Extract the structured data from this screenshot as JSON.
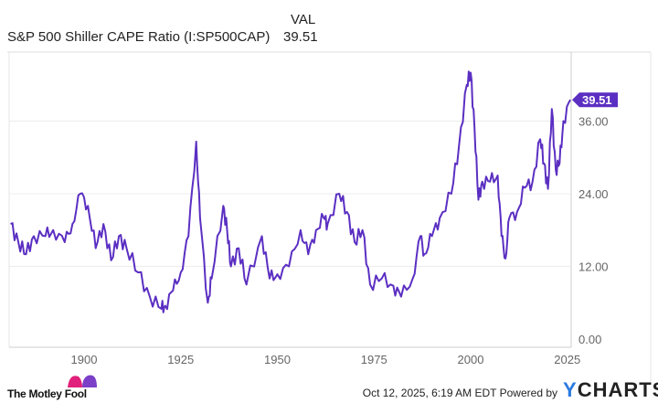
{
  "legend": {
    "header": "VAL",
    "series_name": "S&P 500 Shiller CAPE Ratio (I:SP500CAP)",
    "value": "39.51"
  },
  "chart_data": {
    "type": "line",
    "title": "",
    "xlabel": "",
    "ylabel": "",
    "x_ticks": [
      "1900",
      "1925",
      "1950",
      "1975",
      "2000",
      "2025"
    ],
    "y_ticks": [
      "0.00",
      "12.00",
      "24.00",
      "36.00"
    ],
    "ylim": [
      0,
      45
    ],
    "xlim": [
      1881,
      2025.8
    ],
    "grid": true,
    "y_axis_side": "right",
    "color": "#5b2fc2",
    "last_value_label": "39.51",
    "series": [
      {
        "name": "S&P 500 Shiller CAPE Ratio (I:SP500CAP)",
        "x": [
          1881,
          1883,
          1885,
          1887,
          1890,
          1892,
          1895,
          1897,
          1899,
          1901,
          1903,
          1905,
          1907,
          1909,
          1911,
          1914,
          1917,
          1920,
          1921,
          1923,
          1925,
          1927,
          1929,
          1930,
          1932,
          1933,
          1936,
          1937,
          1938,
          1940,
          1942,
          1946,
          1948,
          1950,
          1953,
          1956,
          1958,
          1960,
          1962,
          1963,
          1966,
          1968,
          1970,
          1972,
          1974,
          1977,
          1980,
          1982,
          1985,
          1987,
          1988,
          1990,
          1992,
          1995,
          1997,
          1999,
          2000,
          2001,
          2002,
          2003,
          2005,
          2007,
          2008,
          2009,
          2010,
          2012,
          2014,
          2016,
          2018,
          2019,
          2020,
          2021,
          2022,
          2023,
          2024,
          2025.8
        ],
        "values": [
          19,
          16,
          14,
          17,
          17,
          18,
          16,
          19,
          24,
          22,
          15,
          19,
          13,
          17,
          15,
          11,
          7,
          5,
          5.5,
          8,
          11,
          17,
          32.6,
          20,
          6,
          10,
          22,
          18,
          12,
          15,
          9,
          17,
          10,
          10.7,
          12,
          18,
          14,
          18,
          20,
          19,
          24,
          21,
          16,
          18,
          9,
          10,
          8.8,
          7,
          10,
          17,
          14,
          17,
          20,
          24,
          32,
          42,
          44,
          35,
          23,
          26,
          26,
          27,
          17,
          13.3,
          20,
          21,
          25,
          26,
          33,
          29,
          24.8,
          38,
          28,
          29,
          36,
          39.51
        ]
      }
    ]
  },
  "footer": {
    "logo_text": "The Motley Fool",
    "timestamp": "Oct 12, 2025, 6:19 AM EDT",
    "powered_by": "Powered by",
    "brand_y": "Y",
    "brand_rest": "CHARTS"
  }
}
